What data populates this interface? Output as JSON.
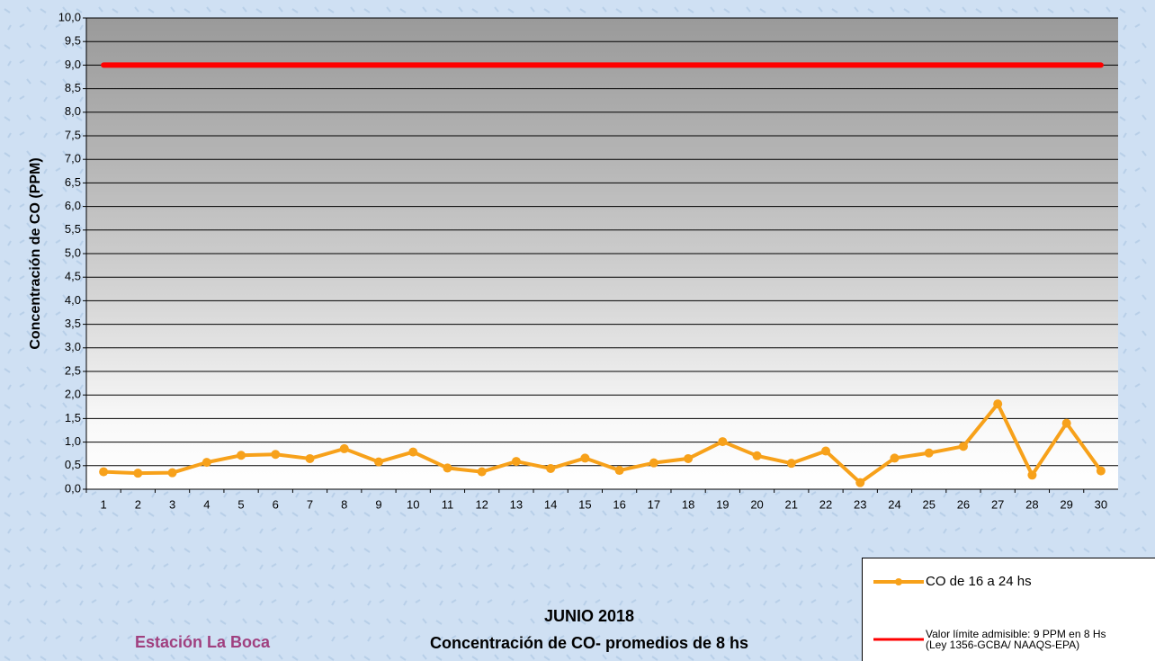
{
  "chart_data": {
    "type": "line",
    "title": "JUNIO 2018",
    "subtitle": "Concentración de CO- promedios de 8 hs",
    "station": "Estación La Boca",
    "y_label": "Concentración de CO (PPM)",
    "categories": [
      "1",
      "2",
      "3",
      "4",
      "5",
      "6",
      "7",
      "8",
      "9",
      "10",
      "11",
      "12",
      "13",
      "14",
      "15",
      "16",
      "17",
      "18",
      "19",
      "20",
      "21",
      "22",
      "23",
      "24",
      "25",
      "26",
      "27",
      "28",
      "29",
      "30"
    ],
    "series": [
      {
        "name": "CO de 16 a 24 hs",
        "color": "#f7a11a",
        "markers": true,
        "values": [
          0.37,
          0.34,
          0.35,
          0.57,
          0.72,
          0.74,
          0.65,
          0.86,
          0.58,
          0.79,
          0.45,
          0.37,
          0.59,
          0.44,
          0.66,
          0.4,
          0.56,
          0.65,
          1.01,
          0.71,
          0.55,
          0.81,
          0.14,
          0.66,
          0.77,
          0.91,
          1.81,
          0.3,
          1.4,
          0.39
        ]
      },
      {
        "name": "Valor límite admisible: 9 PPM en 8 Hs\n(Ley 1356-GCBA/ NAAQS-EPA)",
        "color": "#ff0000",
        "markers": false,
        "values": [
          9,
          9,
          9,
          9,
          9,
          9,
          9,
          9,
          9,
          9,
          9,
          9,
          9,
          9,
          9,
          9,
          9,
          9,
          9,
          9,
          9,
          9,
          9,
          9,
          9,
          9,
          9,
          9,
          9,
          9
        ]
      }
    ],
    "ylim": [
      0,
      10
    ],
    "yticks": [
      {
        "value": 0,
        "label": "0,0"
      },
      {
        "value": 0.5,
        "label": "0,5"
      },
      {
        "value": 1,
        "label": "1,0"
      },
      {
        "value": 1.5,
        "label": "1,5"
      },
      {
        "value": 2,
        "label": "2,0"
      },
      {
        "value": 2.5,
        "label": "2,5"
      },
      {
        "value": 3,
        "label": "3,0"
      },
      {
        "value": 3.5,
        "label": "3,5"
      },
      {
        "value": 4,
        "label": "4,0"
      },
      {
        "value": 4.5,
        "label": "4,5"
      },
      {
        "value": 5,
        "label": "5,0"
      },
      {
        "value": 5.5,
        "label": "5,5"
      },
      {
        "value": 6,
        "label": "6,0"
      },
      {
        "value": 6.5,
        "label": "6,5"
      },
      {
        "value": 7,
        "label": "7,0"
      },
      {
        "value": 7.5,
        "label": "7,5"
      },
      {
        "value": 8,
        "label": "8,0"
      },
      {
        "value": 8.5,
        "label": "8,5"
      },
      {
        "value": 9,
        "label": "9,0"
      },
      {
        "value": 9.5,
        "label": "9,5"
      },
      {
        "value": 10,
        "label": "10,0"
      }
    ],
    "grid": true
  }
}
